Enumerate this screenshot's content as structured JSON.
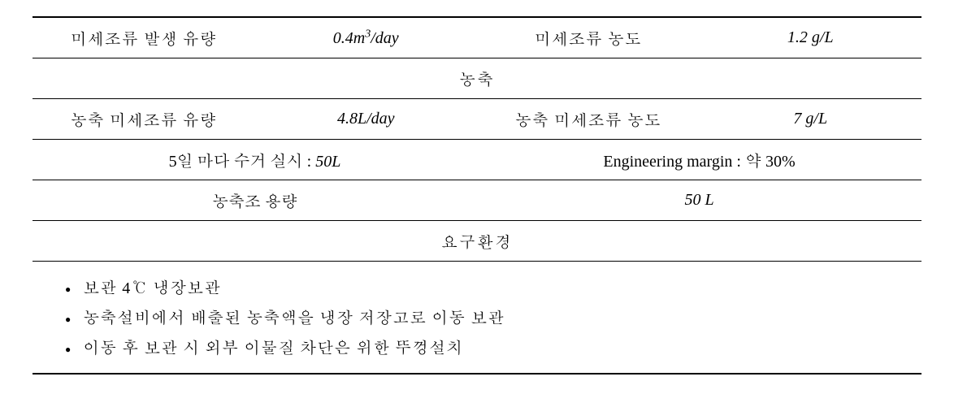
{
  "row1": {
    "label1": "미세조류 발생 유량",
    "value1_num": "0.4",
    "value1_unit": "m",
    "value1_sup": "3",
    "value1_per": "/day",
    "label2": "미세조류 농도",
    "value2_num": "1.2",
    "value2_unit": "g/L"
  },
  "section1": "농축",
  "row2": {
    "label1": "농축 미세조류 유량",
    "value1_num": "4.8",
    "value1_unit": "L/day",
    "label2": "농축 미세조류 농도",
    "value2_num": "7",
    "value2_unit": "g/L"
  },
  "row3": {
    "left_prefix": "5일 마다 수거 실시 : ",
    "left_num": "50",
    "left_unit": "L",
    "right_prefix": "Engineering margin : 약 ",
    "right_val": "30%"
  },
  "row4": {
    "left": "농축조 용량",
    "right_num": "50",
    "right_unit": "L"
  },
  "section2": "요구환경",
  "bullets": {
    "b1": "보관 4℃ 냉장보관",
    "b2": "농축설비에서 배출된 농축액을 냉장 저장고로 이동 보관",
    "b3": "이동 후 보관 시 외부 이물질 차단은 위한 뚜껑설치"
  }
}
